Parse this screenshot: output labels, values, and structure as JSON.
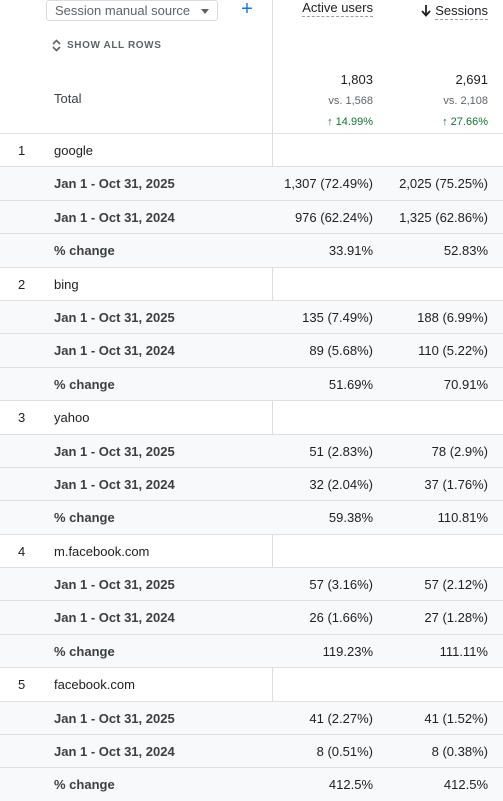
{
  "header": {
    "dimension_select": "Session manual source",
    "add_button": "+",
    "show_all_rows": "SHOW ALL ROWS",
    "col_active_users": "Active users",
    "col_sessions": "Sessions"
  },
  "total": {
    "label": "Total",
    "active_users": {
      "value": "1,803",
      "vs": "vs. 1,568",
      "change": "↑ 14.99%"
    },
    "sessions": {
      "value": "2,691",
      "vs": "vs. 2,108",
      "change": "↑ 27.66%"
    }
  },
  "rows": [
    {
      "index": "1",
      "source": "google",
      "r2025": {
        "label": "Jan 1 - Oct 31, 2025",
        "users": "1,307 (72.49%)",
        "sessions": "2,025 (75.25%)"
      },
      "r2024": {
        "label": "Jan 1 - Oct 31, 2024",
        "users": "976 (62.24%)",
        "sessions": "1,325 (62.86%)"
      },
      "change": {
        "label": "% change",
        "users": "33.91%",
        "sessions": "52.83%"
      }
    },
    {
      "index": "2",
      "source": "bing",
      "r2025": {
        "label": "Jan 1 - Oct 31, 2025",
        "users": "135 (7.49%)",
        "sessions": "188 (6.99%)"
      },
      "r2024": {
        "label": "Jan 1 - Oct 31, 2024",
        "users": "89 (5.68%)",
        "sessions": "110 (5.22%)"
      },
      "change": {
        "label": "% change",
        "users": "51.69%",
        "sessions": "70.91%"
      }
    },
    {
      "index": "3",
      "source": "yahoo",
      "r2025": {
        "label": "Jan 1 - Oct 31, 2025",
        "users": "51 (2.83%)",
        "sessions": "78 (2.9%)"
      },
      "r2024": {
        "label": "Jan 1 - Oct 31, 2024",
        "users": "32 (2.04%)",
        "sessions": "37 (1.76%)"
      },
      "change": {
        "label": "% change",
        "users": "59.38%",
        "sessions": "110.81%"
      }
    },
    {
      "index": "4",
      "source": "m.facebook.com",
      "r2025": {
        "label": "Jan 1 - Oct 31, 2025",
        "users": "57 (3.16%)",
        "sessions": "57 (2.12%)"
      },
      "r2024": {
        "label": "Jan 1 - Oct 31, 2024",
        "users": "26 (1.66%)",
        "sessions": "27 (1.28%)"
      },
      "change": {
        "label": "% change",
        "users": "119.23%",
        "sessions": "111.11%"
      }
    },
    {
      "index": "5",
      "source": "facebook.com",
      "r2025": {
        "label": "Jan 1 - Oct 31, 2025",
        "users": "41 (2.27%)",
        "sessions": "41 (1.52%)"
      },
      "r2024": {
        "label": "Jan 1 - Oct 31, 2024",
        "users": "8 (0.51%)",
        "sessions": "8 (0.38%)"
      },
      "change": {
        "label": "% change",
        "users": "412.5%",
        "sessions": "412.5%"
      }
    }
  ],
  "colors": {
    "accent": "#1a73e8",
    "positive": "#137333",
    "border": "#dadce0"
  }
}
